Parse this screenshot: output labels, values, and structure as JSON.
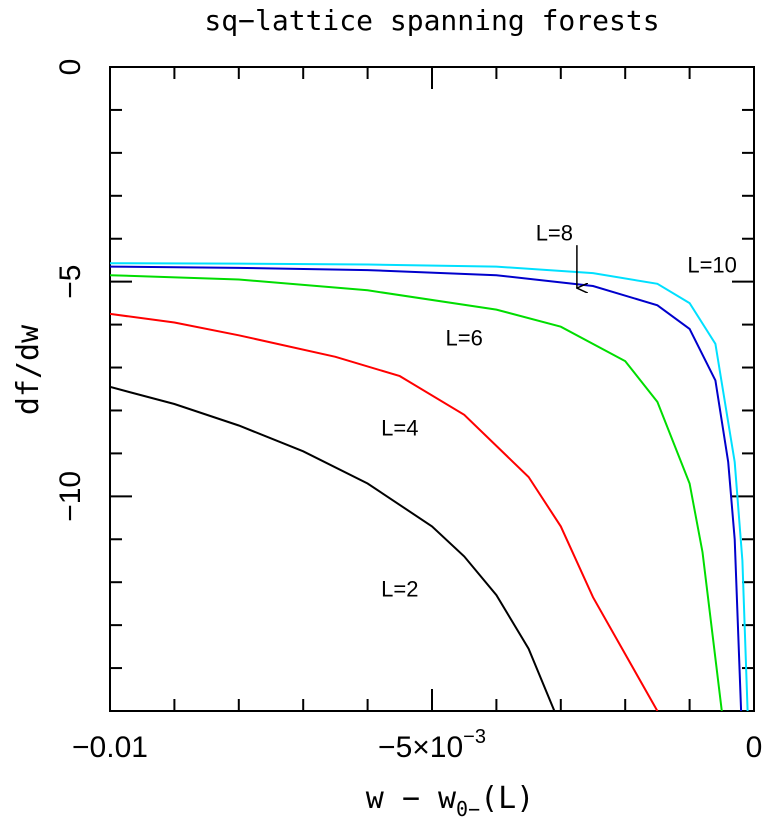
{
  "chart_data": {
    "type": "line",
    "title": "sq−lattice spanning forests",
    "xlabel": "w − w",
    "xlabel_sub": "0−",
    "xlabel_tail": "(L)",
    "ylabel": "df/dw",
    "xlim": [
      -0.01,
      0.0
    ],
    "ylim": [
      -15,
      0
    ],
    "x_ticks": [
      {
        "value": -0.01,
        "label": "−0.01"
      },
      {
        "value": -0.005,
        "label": "−5×10",
        "sup": "−3"
      },
      {
        "value": 0.0,
        "label": "0"
      }
    ],
    "y_ticks": [
      {
        "value": 0,
        "label": "0"
      },
      {
        "value": -5,
        "label": "−5"
      },
      {
        "value": -10,
        "label": "−10"
      }
    ],
    "grid": false,
    "series": [
      {
        "name": "L=2",
        "color": "#000000",
        "x": [
          -0.01,
          -0.009,
          -0.008,
          -0.007,
          -0.006,
          -0.005,
          -0.0045,
          -0.004,
          -0.0035,
          -0.0031
        ],
        "y": [
          -7.45,
          -7.85,
          -8.35,
          -8.95,
          -9.7,
          -10.7,
          -11.4,
          -12.3,
          -13.55,
          -15.0
        ]
      },
      {
        "name": "L=4",
        "color": "#ff0000",
        "x": [
          -0.01,
          -0.009,
          -0.008,
          -0.0065,
          -0.0055,
          -0.0045,
          -0.0035,
          -0.003,
          -0.0025,
          -0.0015
        ],
        "y": [
          -5.75,
          -5.95,
          -6.25,
          -6.75,
          -7.2,
          -8.1,
          -9.55,
          -10.7,
          -12.35,
          -15.0
        ]
      },
      {
        "name": "L=6",
        "color": "#00dd00",
        "x": [
          -0.01,
          -0.008,
          -0.006,
          -0.004,
          -0.003,
          -0.002,
          -0.0015,
          -0.001,
          -0.0008,
          -0.0005
        ],
        "y": [
          -4.85,
          -4.95,
          -5.2,
          -5.65,
          -6.05,
          -6.85,
          -7.8,
          -9.7,
          -11.3,
          -15.0
        ]
      },
      {
        "name": "L=8",
        "color": "#0000cc",
        "x": [
          -0.01,
          -0.008,
          -0.006,
          -0.004,
          -0.0025,
          -0.0015,
          -0.001,
          -0.0006,
          -0.0004,
          -0.0003,
          -0.0002
        ],
        "y": [
          -4.65,
          -4.68,
          -4.73,
          -4.85,
          -5.1,
          -5.55,
          -6.1,
          -7.3,
          -9.2,
          -11.0,
          -15.0
        ]
      },
      {
        "name": "L=10",
        "color": "#00e0ff",
        "x": [
          -0.01,
          -0.008,
          -0.006,
          -0.004,
          -0.0025,
          -0.0015,
          -0.001,
          -0.0006,
          -0.0003,
          -0.00018,
          -0.0001
        ],
        "y": [
          -4.57,
          -4.58,
          -4.6,
          -4.65,
          -4.8,
          -5.05,
          -5.5,
          -6.45,
          -9.2,
          -11.5,
          -15.0
        ]
      }
    ],
    "annotations": [
      {
        "text": "L=2",
        "x": -0.0055,
        "y": -12.2
      },
      {
        "text": "L=4",
        "x": -0.0055,
        "y": -8.45
      },
      {
        "text": "L=6",
        "x": -0.0045,
        "y": -6.35
      },
      {
        "text": "L=8",
        "x": -0.0031,
        "y": -3.9
      },
      {
        "text": "L=10",
        "x": -0.00065,
        "y": -4.65
      }
    ],
    "arrow": {
      "from": {
        "x": -0.00275,
        "y": -4.15
      },
      "to": {
        "x": -0.00275,
        "y": -5.15
      }
    }
  }
}
